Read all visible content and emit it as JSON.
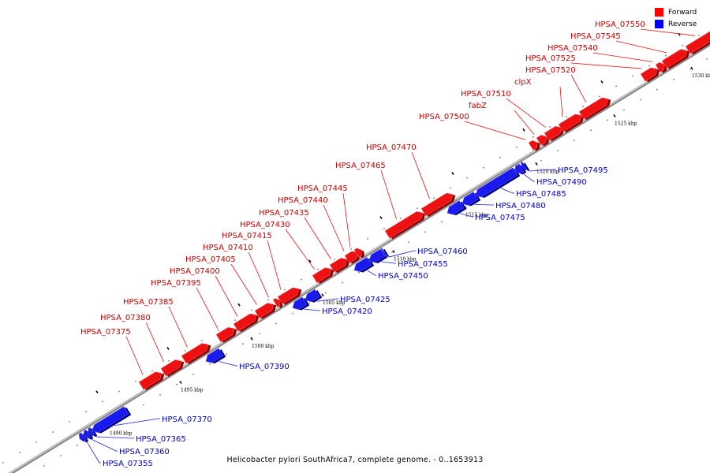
{
  "caption": "Helicobacter pylori SouthAfrica7, complete genome. - 0..1653913",
  "legend": [
    {
      "label": "Forward",
      "color": "#ff0000"
    },
    {
      "label": "Reverse",
      "color": "#0000ff"
    }
  ],
  "colors": {
    "forward": "#ee1111",
    "reverse": "#1a1aee",
    "forward_label": "#cc0000",
    "reverse_label": "#0000cc"
  },
  "scale_unit": "kbp",
  "ticks_kbp": [
    1490,
    1495,
    1500,
    1505,
    1510,
    1515,
    1520,
    1525,
    1530
  ],
  "genes": [
    {
      "name": "HPSA_07355",
      "strand": "reverse"
    },
    {
      "name": "HPSA_07360",
      "strand": "reverse"
    },
    {
      "name": "HPSA_07365",
      "strand": "reverse"
    },
    {
      "name": "HPSA_07370",
      "strand": "reverse"
    },
    {
      "name": "HPSA_07375",
      "strand": "forward"
    },
    {
      "name": "HPSA_07380",
      "strand": "forward"
    },
    {
      "name": "HPSA_07385",
      "strand": "forward"
    },
    {
      "name": "HPSA_07390",
      "strand": "reverse"
    },
    {
      "name": "HPSA_07395",
      "strand": "forward"
    },
    {
      "name": "HPSA_07400",
      "strand": "forward"
    },
    {
      "name": "HPSA_07405",
      "strand": "forward"
    },
    {
      "name": "HPSA_07410",
      "strand": "forward"
    },
    {
      "name": "HPSA_07415",
      "strand": "forward"
    },
    {
      "name": "HPSA_07420",
      "strand": "reverse"
    },
    {
      "name": "HPSA_07425",
      "strand": "reverse"
    },
    {
      "name": "HPSA_07430",
      "strand": "forward"
    },
    {
      "name": "HPSA_07435",
      "strand": "forward"
    },
    {
      "name": "HPSA_07440",
      "strand": "forward"
    },
    {
      "name": "HPSA_07445",
      "strand": "forward"
    },
    {
      "name": "HPSA_07450",
      "strand": "reverse"
    },
    {
      "name": "HPSA_07455",
      "strand": "reverse"
    },
    {
      "name": "HPSA_07460",
      "strand": "reverse"
    },
    {
      "name": "HPSA_07465",
      "strand": "forward"
    },
    {
      "name": "HPSA_07470",
      "strand": "forward"
    },
    {
      "name": "HPSA_07475",
      "strand": "reverse"
    },
    {
      "name": "HPSA_07480",
      "strand": "reverse"
    },
    {
      "name": "HPSA_07485",
      "strand": "reverse"
    },
    {
      "name": "HPSA_07490",
      "strand": "reverse"
    },
    {
      "name": "HPSA_07495",
      "strand": "reverse"
    },
    {
      "name": "HPSA_07500",
      "strand": "forward"
    },
    {
      "name": "fabZ",
      "strand": "forward"
    },
    {
      "name": "HPSA_07510",
      "strand": "forward"
    },
    {
      "name": "clpX",
      "strand": "forward"
    },
    {
      "name": "HPSA_07520",
      "strand": "forward"
    },
    {
      "name": "HPSA_07525",
      "strand": "forward"
    },
    {
      "name": "HPSA_07540",
      "strand": "forward"
    },
    {
      "name": "HPSA_07545",
      "strand": "forward"
    },
    {
      "name": "HPSA_07550",
      "strand": "forward"
    }
  ]
}
